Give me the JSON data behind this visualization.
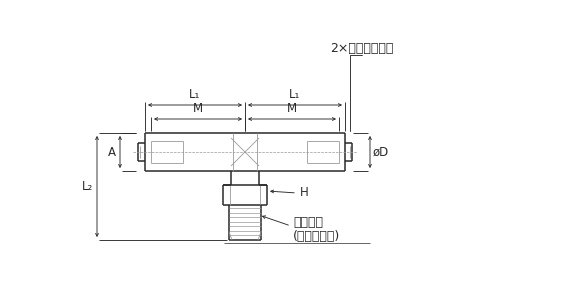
{
  "bg_color": "#ffffff",
  "line_color": "#2a2a2a",
  "dim_color": "#2a2a2a",
  "gray": "#999999",
  "light_gray": "#cccccc",
  "title_label": "2×適用チューブ",
  "label_L1": "L₁",
  "label_M": "M",
  "label_A": "A",
  "label_L2": "L₂",
  "label_D": "øD",
  "label_H": "H",
  "label_screw": "接続ねじ",
  "label_seal": "(シール剤付)",
  "font_size": 8.5
}
